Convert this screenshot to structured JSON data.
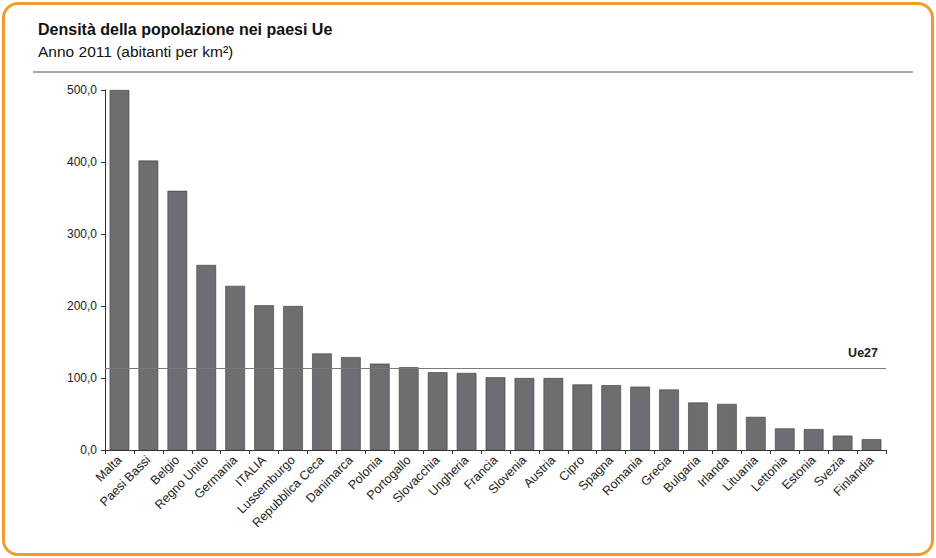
{
  "chart_data": {
    "type": "bar",
    "title": "Densità della popolazione nei paesi Ue",
    "subtitle": "Anno 2011 (abitanti per km²)",
    "categories": [
      "Malta",
      "Paesi Bassi",
      "Belgio",
      "Regno Unito",
      "Germania",
      "ITALIA",
      "Lussemburgo",
      "Repubblica Ceca",
      "Danimarca",
      "Polonia",
      "Portogallo",
      "Slovacchia",
      "Ungheria",
      "Francia",
      "Slovenia",
      "Austria",
      "Cipro",
      "Spagna",
      "Romania",
      "Grecia",
      "Bulgaria",
      "Irlanda",
      "Lituania",
      "Lettonia",
      "Estonia",
      "Svezia",
      "Finlandia"
    ],
    "values": [
      500,
      402,
      360,
      257,
      228,
      201,
      200,
      134,
      129,
      120,
      115,
      108,
      107,
      101,
      100,
      100,
      91,
      90,
      88,
      84,
      66,
      64,
      46,
      30,
      29,
      20,
      15
    ],
    "color": "#6d6e71",
    "ylim": [
      0,
      500
    ],
    "yticks": [
      {
        "value": 0,
        "label": "0,0"
      },
      {
        "value": 100,
        "label": "100,0"
      },
      {
        "value": 200,
        "label": "200,0"
      },
      {
        "value": 300,
        "label": "300,0"
      },
      {
        "value": 400,
        "label": "400,0"
      },
      {
        "value": 500,
        "label": "500,0"
      }
    ],
    "grid": false,
    "reference_lines": [
      {
        "label": "Ue27",
        "value": 114
      }
    ]
  }
}
